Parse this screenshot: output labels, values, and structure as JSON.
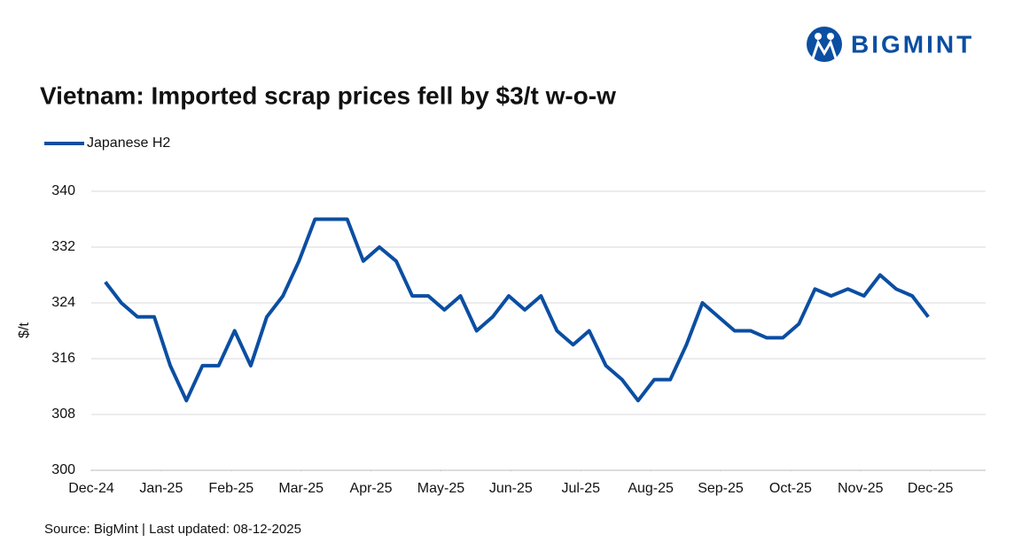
{
  "brand": "BIGMINT",
  "chart_data": {
    "type": "line",
    "title": "Vietnam: Imported scrap prices fell by $3/t w-o-w",
    "y_label": "$/t",
    "source": "Source: BigMint | Last updated: 08-12-2025",
    "x": [
      0.2,
      0.43,
      0.66,
      0.9,
      1.13,
      1.36,
      1.59,
      1.82,
      2.05,
      2.28,
      2.51,
      2.74,
      2.97,
      3.2,
      3.43,
      3.66,
      3.89,
      4.12,
      4.36,
      4.59,
      4.82,
      5.05,
      5.28,
      5.51,
      5.74,
      5.97,
      6.2,
      6.43,
      6.66,
      6.89,
      7.12,
      7.36,
      7.59,
      7.82,
      8.05,
      8.28,
      8.51,
      8.74,
      8.97,
      9.2,
      9.43,
      9.66,
      9.89,
      10.12,
      10.35,
      10.58,
      10.82,
      11.05,
      11.28,
      11.51,
      11.74,
      11.97
    ],
    "series": [
      {
        "name": "Japanese H2",
        "color": "#0b4ea2",
        "values": [
          327,
          324,
          322,
          322,
          315,
          310,
          315,
          315,
          320,
          315,
          322,
          325,
          330,
          336,
          336,
          336,
          330,
          332,
          330,
          325,
          325,
          323,
          325,
          320,
          322,
          325,
          323,
          325,
          320,
          318,
          320,
          315,
          313,
          310,
          313,
          313,
          318,
          324,
          322,
          320,
          320,
          319,
          319,
          321,
          326,
          325,
          326,
          325,
          328,
          326,
          325,
          322
        ]
      }
    ],
    "xlim": [
      0,
      12.79
    ],
    "xticks": [
      {
        "value": 0,
        "label": "Dec-24"
      },
      {
        "value": 1,
        "label": "Jan-25"
      },
      {
        "value": 2,
        "label": "Feb-25"
      },
      {
        "value": 3,
        "label": "Mar-25"
      },
      {
        "value": 4,
        "label": "Apr-25"
      },
      {
        "value": 5,
        "label": "May-25"
      },
      {
        "value": 6,
        "label": "Jun-25"
      },
      {
        "value": 7,
        "label": "Jul-25"
      },
      {
        "value": 8,
        "label": "Aug-25"
      },
      {
        "value": 9,
        "label": "Sep-25"
      },
      {
        "value": 10,
        "label": "Oct-25"
      },
      {
        "value": 11,
        "label": "Nov-25"
      },
      {
        "value": 12,
        "label": "Dec-25"
      }
    ],
    "ylim": [
      300,
      340
    ],
    "yticks": [
      300,
      308,
      316,
      324,
      332,
      340
    ],
    "grid": true,
    "legend": "top-left"
  }
}
